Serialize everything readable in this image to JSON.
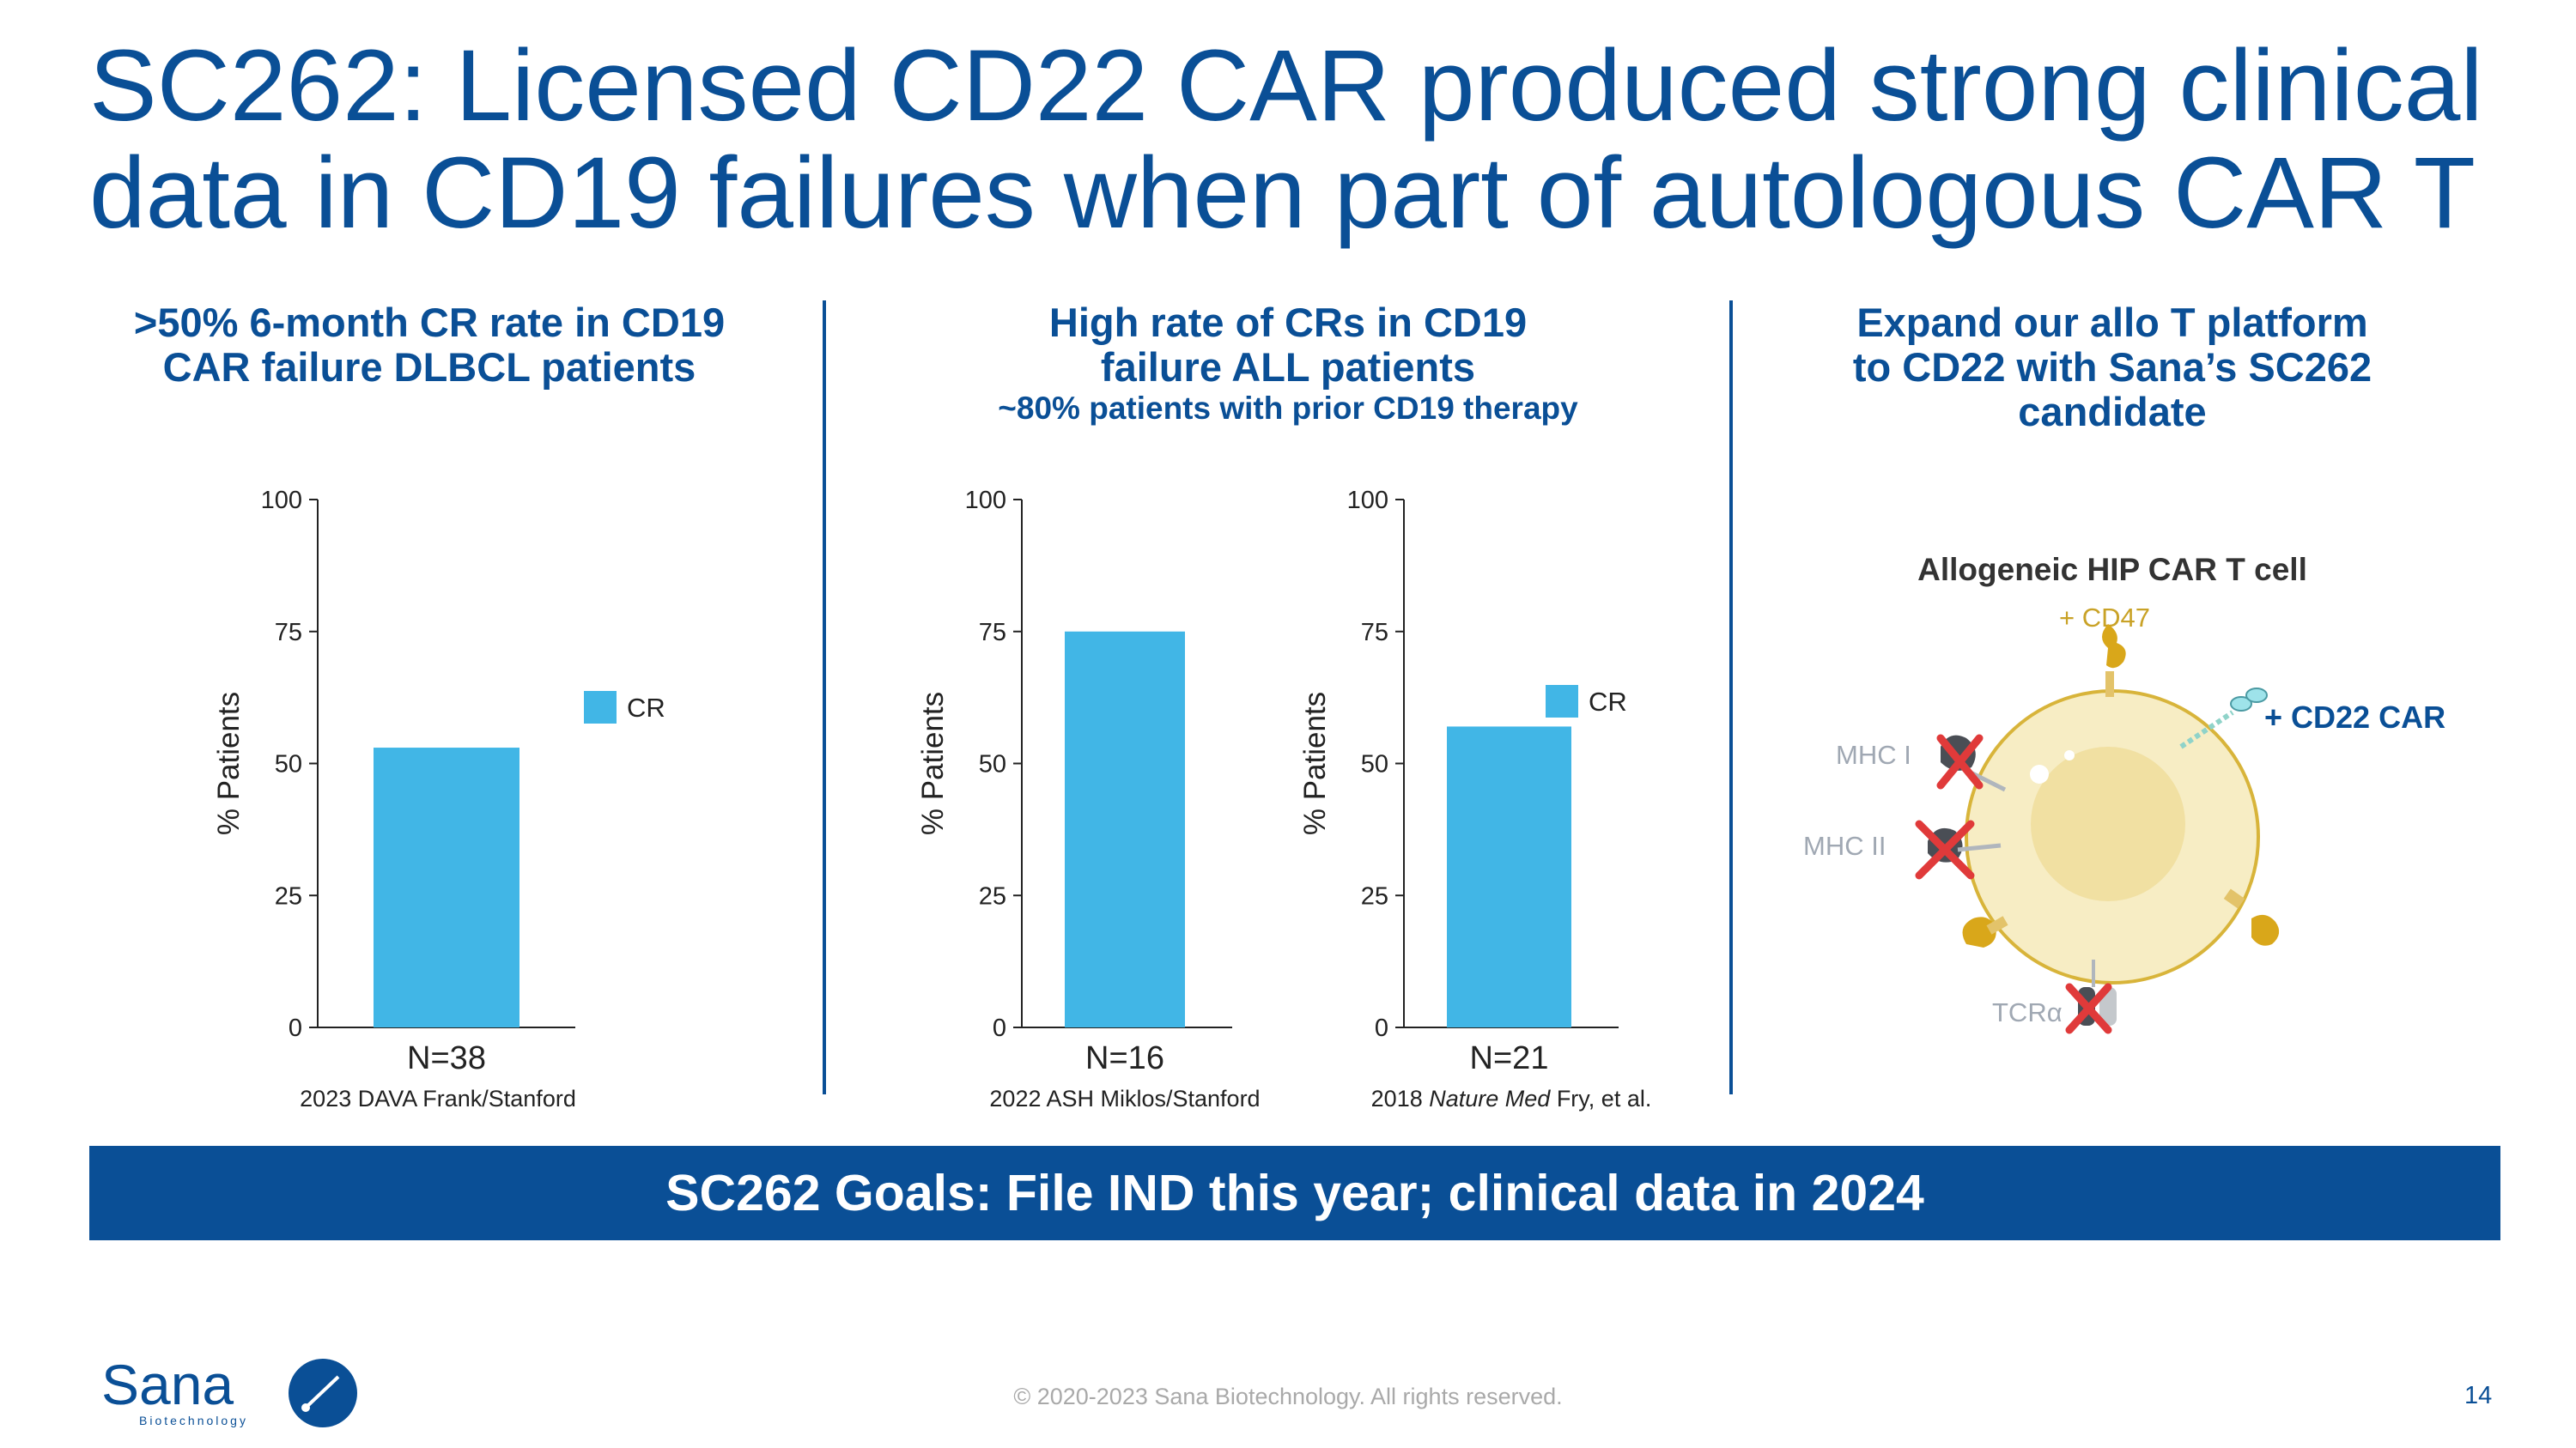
{
  "title": "SC262: Licensed CD22 CAR produced strong clinical data in CD19 failures when part of autologous CAR T",
  "panels": {
    "left": {
      "heading": ">50% 6-month CR rate in CD19 CAR failure DLBCL patients"
    },
    "middle": {
      "heading": "High rate of CRs in CD19 failure ALL patients",
      "subheading": "~80% patients with prior CD19 therapy"
    },
    "right": {
      "heading": "Expand our allo T platform to CD22 with Sana’s SC262 candidate"
    }
  },
  "chart_data": [
    {
      "type": "bar",
      "categories": [
        "N=38"
      ],
      "series": [
        {
          "name": "CR",
          "values": [
            53
          ]
        }
      ],
      "ylabel": "% Patients",
      "ylim": [
        0,
        100
      ],
      "yticks": [
        0,
        25,
        50,
        75,
        100
      ],
      "legend": "right",
      "source": "2023 DAVA Frank/Stanford",
      "color": "#41b6e6"
    },
    {
      "type": "bar",
      "categories": [
        "N=16"
      ],
      "series": [
        {
          "values": [
            75
          ]
        }
      ],
      "ylabel": "% Patients",
      "ylim": [
        0,
        100
      ],
      "yticks": [
        0,
        25,
        50,
        75,
        100
      ],
      "source": "2022 ASH Miklos/Stanford",
      "color": "#41b6e6"
    },
    {
      "type": "bar",
      "categories": [
        "N=21"
      ],
      "series": [
        {
          "name": "CR",
          "values": [
            57
          ]
        }
      ],
      "ylabel": "% Patients",
      "ylim": [
        0,
        100
      ],
      "yticks": [
        0,
        25,
        50,
        75,
        100
      ],
      "legend": "right",
      "source_prefix": "2018 ",
      "source_italic": "Nature Med",
      "source_suffix": " Fry, et al.",
      "color": "#41b6e6"
    }
  ],
  "diagram": {
    "title": "Allogeneic HIP CAR T cell",
    "cd47": "+ CD47",
    "cd22": "+ CD22 CAR",
    "mhc1": "MHC I",
    "mhc2": "MHC II",
    "tcr": "TCRα"
  },
  "goals": "SC262 Goals: File IND this year; clinical data in 2024",
  "footer": {
    "copyright": "© 2020-2023 Sana Biotechnology. All rights reserved.",
    "page": "14",
    "logo_name": "Sana",
    "logo_tag": "Biotechnology"
  },
  "colors": {
    "brand_blue": "#0a4f96",
    "bar": "#41b6e6",
    "cd47_gold": "#c9a227",
    "red_x": "#e03a3a",
    "gray_label": "#a0a8b3"
  }
}
